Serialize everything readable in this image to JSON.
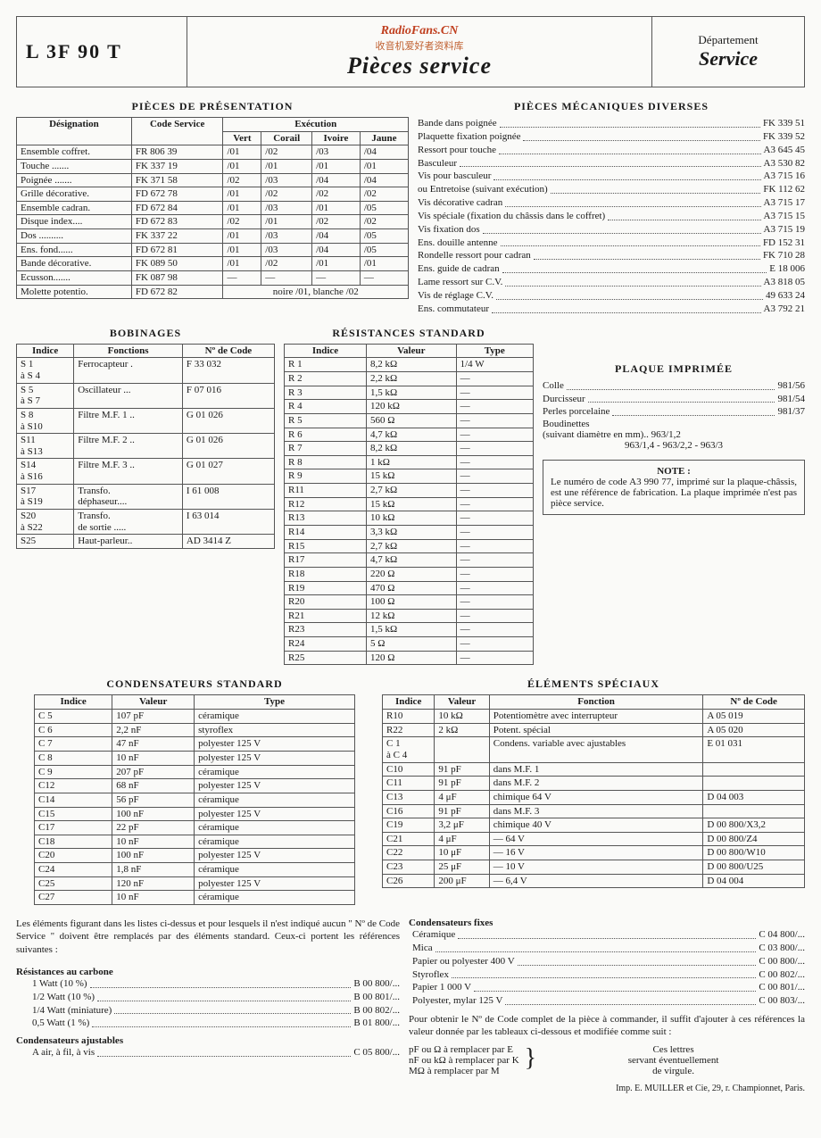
{
  "header": {
    "model": "L 3F 90 T",
    "watermark1": "RadioFans.CN",
    "watermark2": "收音机爱好者资料库",
    "title": "Pièces service",
    "dept_label": "Département",
    "dept_service": "Service"
  },
  "presentation": {
    "title": "PIÈCES DE PRÉSENTATION",
    "headers": [
      "Désignation",
      "Code Service",
      "Exécution"
    ],
    "subheaders": [
      "Vert",
      "Corail",
      "Ivoire",
      "Jaune"
    ],
    "rows": [
      [
        "Ensemble coffret.",
        "FR 806 39",
        "/01",
        "/02",
        "/03",
        "/04"
      ],
      [
        "Touche .......",
        "FK 337 19",
        "/01",
        "/01",
        "/01",
        "/01"
      ],
      [
        "Poignée .......",
        "FK 371 58",
        "/02",
        "/03",
        "/04",
        "/04"
      ],
      [
        "Grille décorative.",
        "FD 672 78",
        "/01",
        "/02",
        "/02",
        "/02"
      ],
      [
        "Ensemble cadran.",
        "FD 672 84",
        "/01",
        "/03",
        "/01",
        "/05"
      ],
      [
        "Disque index....",
        "FD 672 83",
        "/02",
        "/01",
        "/02",
        "/02"
      ],
      [
        "Dos ..........",
        "FK 337 22",
        "/01",
        "/03",
        "/04",
        "/05"
      ],
      [
        "Ens. fond......",
        "FD 672 81",
        "/01",
        "/03",
        "/04",
        "/05"
      ],
      [
        "Bande décorative.",
        "FK 089 50",
        "/01",
        "/02",
        "/01",
        "/01"
      ],
      [
        "Ecusson.......",
        "FK 087 98",
        "—",
        "—",
        "—",
        "—"
      ],
      [
        "Molette potentio.",
        "FD 672 82",
        "",
        "noire /01, blanche /02",
        "",
        ""
      ]
    ]
  },
  "mecaniques": {
    "title": "PIÈCES MÉCANIQUES DIVERSES",
    "rows": [
      [
        "Bande dans poignée",
        "FK 339 51"
      ],
      [
        "Plaquette fixation poignée",
        "FK 339 52"
      ],
      [
        "Ressort pour touche",
        "A3 645 45"
      ],
      [
        "Basculeur",
        "A3 530 82"
      ],
      [
        "Vis pour basculeur",
        "A3 715 16"
      ],
      [
        "ou Entretoise (suivant exécution)",
        "FK 112 62"
      ],
      [
        "Vis décorative cadran",
        "A3 715 17"
      ],
      [
        "Vis spéciale (fixation du châssis dans le coffret)",
        "A3 715 15"
      ],
      [
        "Vis fixation dos",
        "A3 715 19"
      ],
      [
        "Ens. douille antenne",
        "FD 152 31"
      ],
      [
        "Rondelle ressort pour cadran",
        "FK 710 28"
      ],
      [
        "Ens. guide de cadran",
        "E  18 006"
      ],
      [
        "Lame ressort sur C.V.",
        "A3 818 05"
      ],
      [
        "Vis de réglage C.V.",
        "49 633 24"
      ],
      [
        "Ens. commutateur",
        "A3 792 21"
      ]
    ]
  },
  "bobinages": {
    "title": "BOBINAGES",
    "headers": [
      "Indice",
      "Fonctions",
      "Nº de Code"
    ],
    "rows": [
      [
        "S 1\nà S 4",
        "Ferrocapteur .",
        "F 33 032"
      ],
      [
        "S 5\nà S 7",
        "Oscillateur ...",
        "F 07 016"
      ],
      [
        "S 8\nà S10",
        "Filtre M.F. 1 ..",
        "G 01 026"
      ],
      [
        "S11\nà S13",
        "Filtre M.F. 2 ..",
        "G 01 026"
      ],
      [
        "S14\nà S16",
        "Filtre M.F. 3 ..",
        "G 01 027"
      ],
      [
        "S17\nà S19",
        "Transfo.\ndéphaseur....",
        "I 61 008"
      ],
      [
        "S20\nà S22",
        "Transfo.\nde sortie .....",
        "I 63 014"
      ],
      [
        "S25",
        "Haut-parleur..",
        "AD 3414 Z"
      ]
    ]
  },
  "resistances": {
    "title": "RÉSISTANCES STANDARD",
    "headers": [
      "Indice",
      "Valeur",
      "Type"
    ],
    "rows": [
      [
        "R 1",
        "8,2 kΩ",
        "1/4 W"
      ],
      [
        "R 2",
        "2,2 kΩ",
        "—"
      ],
      [
        "R 3",
        "1,5 kΩ",
        "—"
      ],
      [
        "R 4",
        "120 kΩ",
        "—"
      ],
      [
        "R 5",
        "560  Ω",
        "—"
      ],
      [
        "R 6",
        "4,7 kΩ",
        "—"
      ],
      [
        "R 7",
        "8,2 kΩ",
        "—"
      ],
      [
        "R 8",
        "1  kΩ",
        "—"
      ],
      [
        "R 9",
        "15 kΩ",
        "—"
      ],
      [
        "R11",
        "2,7 kΩ",
        "—"
      ],
      [
        "R12",
        "15 kΩ",
        "—"
      ],
      [
        "R13",
        "10 kΩ",
        "—"
      ],
      [
        "R14",
        "3,3 kΩ",
        "—"
      ],
      [
        "R15",
        "2,7 kΩ",
        "—"
      ],
      [
        "R17",
        "4,7 kΩ",
        "—"
      ],
      [
        "R18",
        "220 Ω",
        "—"
      ],
      [
        "R19",
        "470 Ω",
        "—"
      ],
      [
        "R20",
        "100 Ω",
        "—"
      ],
      [
        "R21",
        "12 kΩ",
        "—"
      ],
      [
        "R23",
        "1,5 kΩ",
        "—"
      ],
      [
        "R24",
        "5 Ω",
        "—"
      ],
      [
        "R25",
        "120 Ω",
        "—"
      ]
    ]
  },
  "plaque": {
    "title": "PLAQUE IMPRIMÉE",
    "rows": [
      [
        "Colle",
        "981/56"
      ],
      [
        "Durcisseur",
        "981/54"
      ],
      [
        "Perles porcelaine",
        "981/37"
      ]
    ],
    "extra1": "Boudinettes",
    "extra2": "(suivant diamètre en mm)..  963/1,2",
    "extra3": "963/1,4 - 963/2,2 - 963/3"
  },
  "note": {
    "title": "NOTE :",
    "body": "Le numéro de code A3 990 77, imprimé sur la plaque-châssis, est une référence de fabrication. La plaque imprimée n'est pas pièce service."
  },
  "condensateurs": {
    "title": "CONDENSATEURS STANDARD",
    "headers": [
      "Indice",
      "Valeur",
      "Type"
    ],
    "rows": [
      [
        "C 5",
        "107 pF",
        "céramique"
      ],
      [
        "C 6",
        "2,2 nF",
        "styroflex"
      ],
      [
        "C 7",
        "47 nF",
        "polyester   125 V"
      ],
      [
        "C 8",
        "10 nF",
        "polyester   125 V"
      ],
      [
        "C 9",
        "207 pF",
        "céramique"
      ],
      [
        "C12",
        "68 nF",
        "polyester   125 V"
      ],
      [
        "C14",
        "56 pF",
        "céramique"
      ],
      [
        "C15",
        "100 nF",
        "polyester   125 V"
      ],
      [
        "C17",
        "22 pF",
        "céramique"
      ],
      [
        "C18",
        "10 nF",
        "céramique"
      ],
      [
        "C20",
        "100 nF",
        "polyester   125 V"
      ],
      [
        "C24",
        "1,8 nF",
        "céramique"
      ],
      [
        "C25",
        "120 nF",
        "polyester   125 V"
      ],
      [
        "C27",
        "10 nF",
        "céramique"
      ]
    ]
  },
  "speciaux": {
    "title": "ÉLÉMENTS SPÉCIAUX",
    "headers": [
      "Indice",
      "Valeur",
      "Fonction",
      "Nº de Code"
    ],
    "rows": [
      [
        "R10",
        "10 kΩ",
        "Potentiomètre avec interrupteur",
        "A 05 019"
      ],
      [
        "R22",
        "2 kΩ",
        "Potent. spécial",
        "A 05 020"
      ],
      [
        "C 1\nà C 4",
        "",
        "Condens. variable avec ajustables",
        "E 01 031"
      ],
      [
        "C10",
        "91 pF",
        "dans M.F. 1",
        ""
      ],
      [
        "C11",
        "91 pF",
        "dans M.F. 2",
        ""
      ],
      [
        "C13",
        "4 μF",
        "chimique 64 V",
        "D 04 003"
      ],
      [
        "C16",
        "91 pF",
        "dans M.F. 3",
        ""
      ],
      [
        "C19",
        "3,2 μF",
        "chimique 40 V",
        "D 00 800/X3,2"
      ],
      [
        "C21",
        "4 μF",
        "—     64 V",
        "D 00 800/Z4"
      ],
      [
        "C22",
        "10 μF",
        "—     16 V",
        "D 00 800/W10"
      ],
      [
        "C23",
        "25 μF",
        "—     10 V",
        "D 00 800/U25"
      ],
      [
        "C26",
        "200 μF",
        "—    6,4 V",
        "D 04 004"
      ]
    ]
  },
  "para": {
    "standard": "Les éléments figurant dans les listes ci-dessus et pour lesquels il n'est indiqué aucun \" Nº de Code Service \" doivent être remplacés par des éléments standard. Ceux-ci portent les références suivantes :",
    "res_title": "Résistances au carbone",
    "res_rows": [
      [
        "1 Watt (10 %)",
        "B 00 800/..."
      ],
      [
        "1/2 Watt (10 %)",
        "B 00 801/..."
      ],
      [
        "1/4 Watt (miniature)",
        "B 00 802/..."
      ],
      [
        "0,5 Watt (1 %)",
        "B 01 800/..."
      ]
    ],
    "caj_title": "Condensateurs ajustables",
    "caj_rows": [
      [
        "A air, à fil, à vis",
        "C 05 800/..."
      ]
    ],
    "cfix_title": "Condensateurs fixes",
    "cfix_rows": [
      [
        "Céramique",
        "C 04 800/..."
      ],
      [
        "Mica",
        "C 03 800/..."
      ],
      [
        "Papier ou polyester 400 V",
        "C 00 800/..."
      ],
      [
        "Styroflex",
        "C 00 802/..."
      ],
      [
        "Papier 1 000 V",
        "C 00 801/..."
      ],
      [
        "Polyester, mylar 125 V",
        "C 00 803/..."
      ]
    ],
    "tail1": "Pour obtenir le Nº de Code complet de la pièce à commander, il suffit d'ajouter à ces références la valeur donnée par les tableaux ci-dessous et modifiée comme suit :",
    "tail2a": "pF ou  Ω à remplacer par E",
    "tail2b": "nF ou kΩ à remplacer par K",
    "tail2c": "MΩ à remplacer par M",
    "tail3a": "Ces lettres",
    "tail3b": "servant éventuellement",
    "tail3c": "de virgule."
  },
  "footer": "Imp. E. MUILLER et Cie, 29, r. Championnet, Paris."
}
